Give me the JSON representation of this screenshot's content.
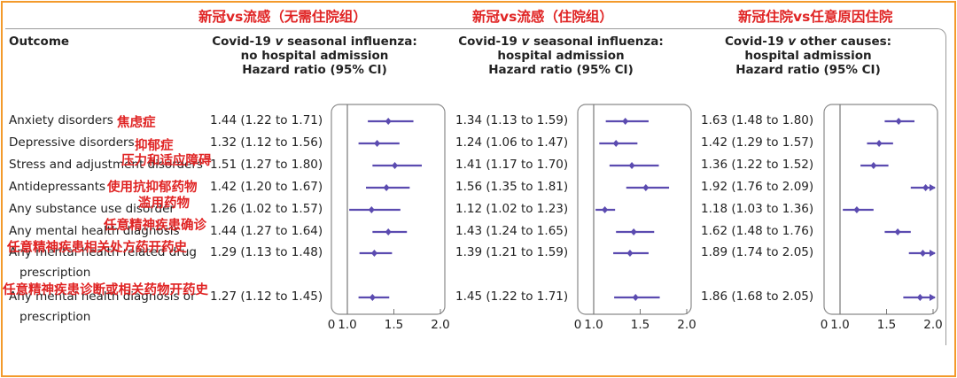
{
  "annotations_top": [
    {
      "text": "新冠vs流感（无需住院组）",
      "left": 224
    },
    {
      "text": "新冠vs流感（住院组）",
      "left": 533
    },
    {
      "text": "新冠住院vs任意原因住院",
      "left": 833
    }
  ],
  "table_header": {
    "outcome_label": "Outcome",
    "columns": [
      {
        "lines": [
          "Covid-19 |v| seasonal influenza:",
          "no hospital admission",
          "Hazard ratio (95% CI)"
        ]
      },
      {
        "lines": [
          "Covid-19 |v| seasonal influenza:",
          "hospital admission",
          "Hazard ratio (95% CI)"
        ]
      },
      {
        "lines": [
          "Covid-19 |v| other causes:",
          "hospital admission",
          "Hazard ratio (95% CI)"
        ]
      }
    ]
  },
  "rows": [
    {
      "outcome": "Anxiety disorders",
      "outcome_cont": "",
      "red": "焦虑症",
      "hr": [
        "1.44 (1.22 to 1.71)",
        "1.34 (1.13 to 1.59)",
        "1.63 (1.48 to 1.80)"
      ]
    },
    {
      "outcome": "Depressive disorders",
      "outcome_cont": "",
      "red": "抑郁症",
      "hr": [
        "1.32 (1.12 to 1.56)",
        "1.24 (1.06 to 1.47)",
        "1.42 (1.29 to 1.57)"
      ]
    },
    {
      "outcome": "Stress and adjustment disorders",
      "outcome_cont": "",
      "red": "压力和适应障碍",
      "hr": [
        "1.51 (1.27 to 1.80)",
        "1.41 (1.17 to 1.70)",
        "1.36 (1.22 to 1.52)"
      ]
    },
    {
      "outcome": "Antidepressants",
      "outcome_cont": "",
      "red": "使用抗抑郁药物",
      "hr": [
        "1.42 (1.20 to 1.67)",
        "1.56 (1.35 to 1.81)",
        "1.92 (1.76 to 2.09)"
      ]
    },
    {
      "outcome": "Any substance use disorder",
      "outcome_cont": "",
      "red": "滥用药物",
      "hr": [
        "1.26 (1.02 to 1.57)",
        "1.12 (1.02 to 1.23)",
        "1.18 (1.03 to 1.36)"
      ]
    },
    {
      "outcome": "Any mental health diagnosis",
      "outcome_cont": "",
      "red": "任意精神疾患确诊",
      "hr": [
        "1.44 (1.27 to 1.64)",
        "1.43 (1.24 to 1.65)",
        "1.62 (1.48 to 1.76)"
      ]
    },
    {
      "outcome": "Any mental health related drug",
      "outcome_cont": "prescription",
      "red": "任意精神疾患相关处方药开药史",
      "hr": [
        "1.29 (1.13 to 1.48)",
        "1.39 (1.21 to 1.59)",
        "1.89 (1.74 to 2.05)"
      ]
    },
    {
      "outcome": "Any mental health diagnosis or",
      "outcome_cont": "prescription",
      "red": "任意精神疾患诊断或相关药物开药史",
      "hr": [
        "1.27 (1.12 to 1.45)",
        "1.45 (1.22 to 1.71)",
        "1.86 (1.68 to 2.05)"
      ]
    }
  ],
  "chart_data": [
    {
      "type": "forest",
      "title": "Covid-19 v seasonal influenza: no hospital admission",
      "xlim": [
        0,
        2.0
      ],
      "xticks": [
        "0",
        "1.0",
        "1.5",
        "2.0"
      ],
      "ref_line": 1.0,
      "color": "#5b4bb0",
      "categories": [
        "Anxiety disorders",
        "Depressive disorders",
        "Stress and adjustment disorders",
        "Antidepressants",
        "Any substance use disorder",
        "Any mental health diagnosis",
        "Any mental health related drug prescription",
        "Any mental health diagnosis or prescription"
      ],
      "est": [
        1.44,
        1.32,
        1.51,
        1.42,
        1.26,
        1.44,
        1.29,
        1.27
      ],
      "lo": [
        1.22,
        1.12,
        1.27,
        1.2,
        1.02,
        1.27,
        1.13,
        1.12
      ],
      "hi": [
        1.71,
        1.56,
        1.8,
        1.67,
        1.57,
        1.64,
        1.48,
        1.45
      ]
    },
    {
      "type": "forest",
      "title": "Covid-19 v seasonal influenza: hospital admission",
      "xlim": [
        0,
        2.0
      ],
      "xticks": [
        "0",
        "1.0",
        "1.5",
        "2.0"
      ],
      "ref_line": 1.0,
      "color": "#5b4bb0",
      "categories": [
        "Anxiety disorders",
        "Depressive disorders",
        "Stress and adjustment disorders",
        "Antidepressants",
        "Any substance use disorder",
        "Any mental health diagnosis",
        "Any mental health related drug prescription",
        "Any mental health diagnosis or prescription"
      ],
      "est": [
        1.34,
        1.24,
        1.41,
        1.56,
        1.12,
        1.43,
        1.39,
        1.45
      ],
      "lo": [
        1.13,
        1.06,
        1.17,
        1.35,
        1.02,
        1.24,
        1.21,
        1.22
      ],
      "hi": [
        1.59,
        1.47,
        1.7,
        1.81,
        1.23,
        1.65,
        1.59,
        1.71
      ]
    },
    {
      "type": "forest",
      "title": "Covid-19 v other causes: hospital admission",
      "xlim": [
        0,
        2.0
      ],
      "xticks": [
        "0",
        "1.0",
        "1.5",
        "2.0"
      ],
      "ref_line": 1.0,
      "color": "#5b4bb0",
      "categories": [
        "Anxiety disorders",
        "Depressive disorders",
        "Stress and adjustment disorders",
        "Antidepressants",
        "Any substance use disorder",
        "Any mental health diagnosis",
        "Any mental health related drug prescription",
        "Any mental health diagnosis or prescription"
      ],
      "est": [
        1.63,
        1.42,
        1.36,
        1.92,
        1.18,
        1.62,
        1.89,
        1.86
      ],
      "lo": [
        1.48,
        1.29,
        1.22,
        1.76,
        1.03,
        1.48,
        1.74,
        1.68
      ],
      "hi": [
        1.8,
        1.57,
        1.52,
        2.09,
        1.36,
        1.76,
        2.05,
        2.05
      ]
    }
  ]
}
